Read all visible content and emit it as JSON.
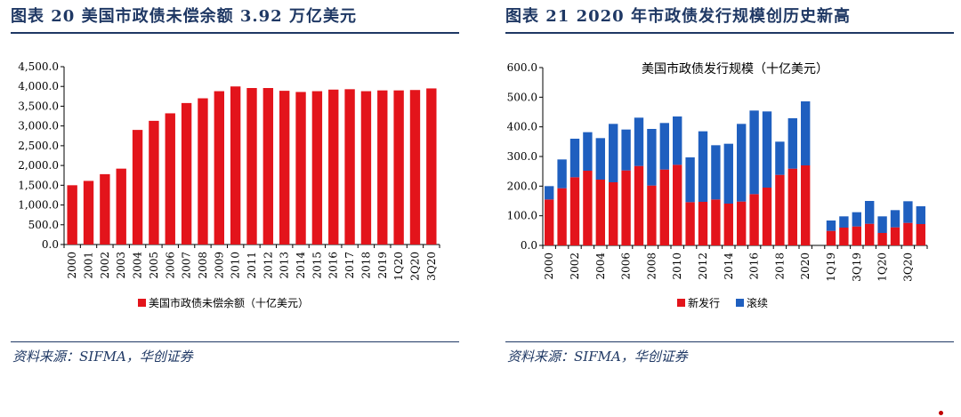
{
  "left": {
    "title": "图表 20   美国市政债未偿余额 3.92 万亿美元",
    "source": "资料来源：SIFMA，华创证券",
    "chart_data": {
      "type": "bar",
      "categories": [
        "2000",
        "2001",
        "2002",
        "2003",
        "2004",
        "2005",
        "2006",
        "2007",
        "2008",
        "2009",
        "2010",
        "2011",
        "2012",
        "2013",
        "2014",
        "2015",
        "2016",
        "2017",
        "2018",
        "2019",
        "1Q20",
        "2Q20",
        "3Q20"
      ],
      "series": [
        {
          "name": "美国市政债未偿余额（十亿美元）",
          "values": [
            1500,
            1610,
            1780,
            1920,
            2900,
            3130,
            3320,
            3580,
            3700,
            3880,
            4000,
            3960,
            3960,
            3890,
            3860,
            3880,
            3920,
            3930,
            3880,
            3900,
            3900,
            3910,
            3950
          ]
        }
      ],
      "ylim": [
        0,
        4500
      ],
      "yticks": [
        "0.0",
        "500.0",
        "1,000.0",
        "1,500.0",
        "2,000.0",
        "2,500.0",
        "3,000.0",
        "3,500.0",
        "4,000.0",
        "4,500.0"
      ],
      "legend_position": "bottom",
      "colors": [
        "#e3141b"
      ]
    }
  },
  "right": {
    "title": "图表 21   2020 年市政债发行规模创历史新高",
    "source": "资料来源：SIFMA，华创证券",
    "chart_data": {
      "type": "bar",
      "stacked": true,
      "title": "美国市政债发行规模（十亿美元）",
      "categories": [
        "2000",
        "2001",
        "2002",
        "2003",
        "2004",
        "2005",
        "2006",
        "2007",
        "2008",
        "2009",
        "2010",
        "2011",
        "2012",
        "2013",
        "2014",
        "2015",
        "2016",
        "2017",
        "2018",
        "2019",
        "2020",
        "",
        "1Q19",
        "2Q19",
        "3Q19",
        "4Q19",
        "1Q20",
        "2Q20",
        "3Q20",
        "4Q20"
      ],
      "xticklabels": [
        "2000",
        "",
        "2002",
        "",
        "2004",
        "",
        "2006",
        "",
        "2008",
        "",
        "2010",
        "",
        "2012",
        "",
        "2014",
        "",
        "2016",
        "",
        "2018",
        "",
        "2020",
        "",
        "1Q19",
        "",
        "3Q19",
        "",
        "1Q20",
        "",
        "3Q20",
        ""
      ],
      "series": [
        {
          "name": "新发行",
          "values": [
            155,
            193,
            230,
            252,
            222,
            213,
            253,
            268,
            202,
            256,
            272,
            146,
            147,
            155,
            141,
            148,
            173,
            195,
            238,
            259,
            270,
            null,
            49,
            60,
            64,
            73,
            42,
            61,
            76,
            72
          ]
        },
        {
          "name": "滚续",
          "values": [
            45,
            97,
            130,
            130,
            140,
            197,
            138,
            163,
            191,
            157,
            163,
            151,
            238,
            183,
            202,
            262,
            282,
            257,
            112,
            170,
            216,
            null,
            35,
            38,
            48,
            77,
            56,
            58,
            73,
            60
          ]
        }
      ],
      "ylim": [
        0,
        600
      ],
      "yticks": [
        "0.0",
        "100.0",
        "200.0",
        "300.0",
        "400.0",
        "500.0",
        "600.0"
      ],
      "legend_position": "bottom",
      "colors": [
        "#e3141b",
        "#1f5fbf"
      ]
    }
  }
}
